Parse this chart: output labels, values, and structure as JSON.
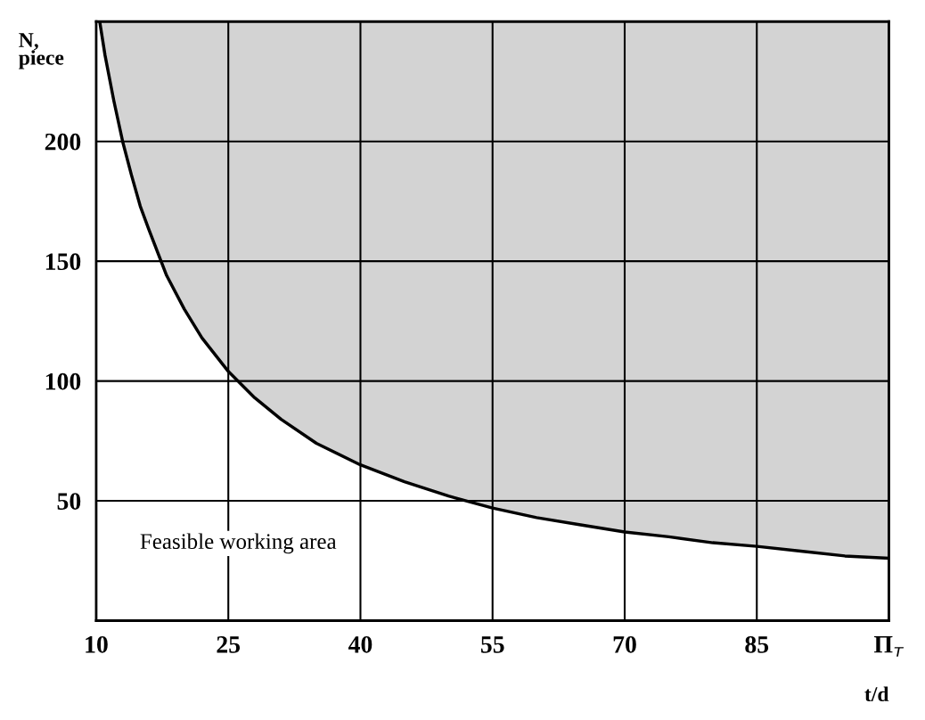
{
  "chart_data": {
    "type": "line",
    "ylabel": "N,\npiece",
    "xlabel": "t/d",
    "annotations": [
      "Feasible working area"
    ],
    "xlim": [
      10,
      100
    ],
    "xticks": [
      10,
      25,
      40,
      55,
      70,
      85,
      {
        "value": 100,
        "label": "Π$_{т}$"
      }
    ],
    "ylim": [
      0,
      250
    ],
    "yticks": [
      50,
      100,
      150,
      200
    ],
    "grid": true,
    "marker": "none",
    "line_style": "solid",
    "series": [
      {
        "color": "#000000",
        "x": [
          10.4,
          11,
          12,
          13,
          14,
          15,
          16,
          18,
          20,
          22,
          25,
          28,
          31,
          35,
          40,
          45,
          50,
          55,
          60,
          65,
          70,
          75,
          80,
          85,
          90,
          95,
          100
        ],
        "values": [
          250,
          236,
          217,
          200,
          186,
          173,
          163,
          144,
          130,
          118,
          104,
          93,
          84,
          74,
          65,
          58,
          52,
          47,
          43,
          40,
          37,
          35,
          32.5,
          31,
          29,
          27,
          26
        ]
      }
    ]
  }
}
